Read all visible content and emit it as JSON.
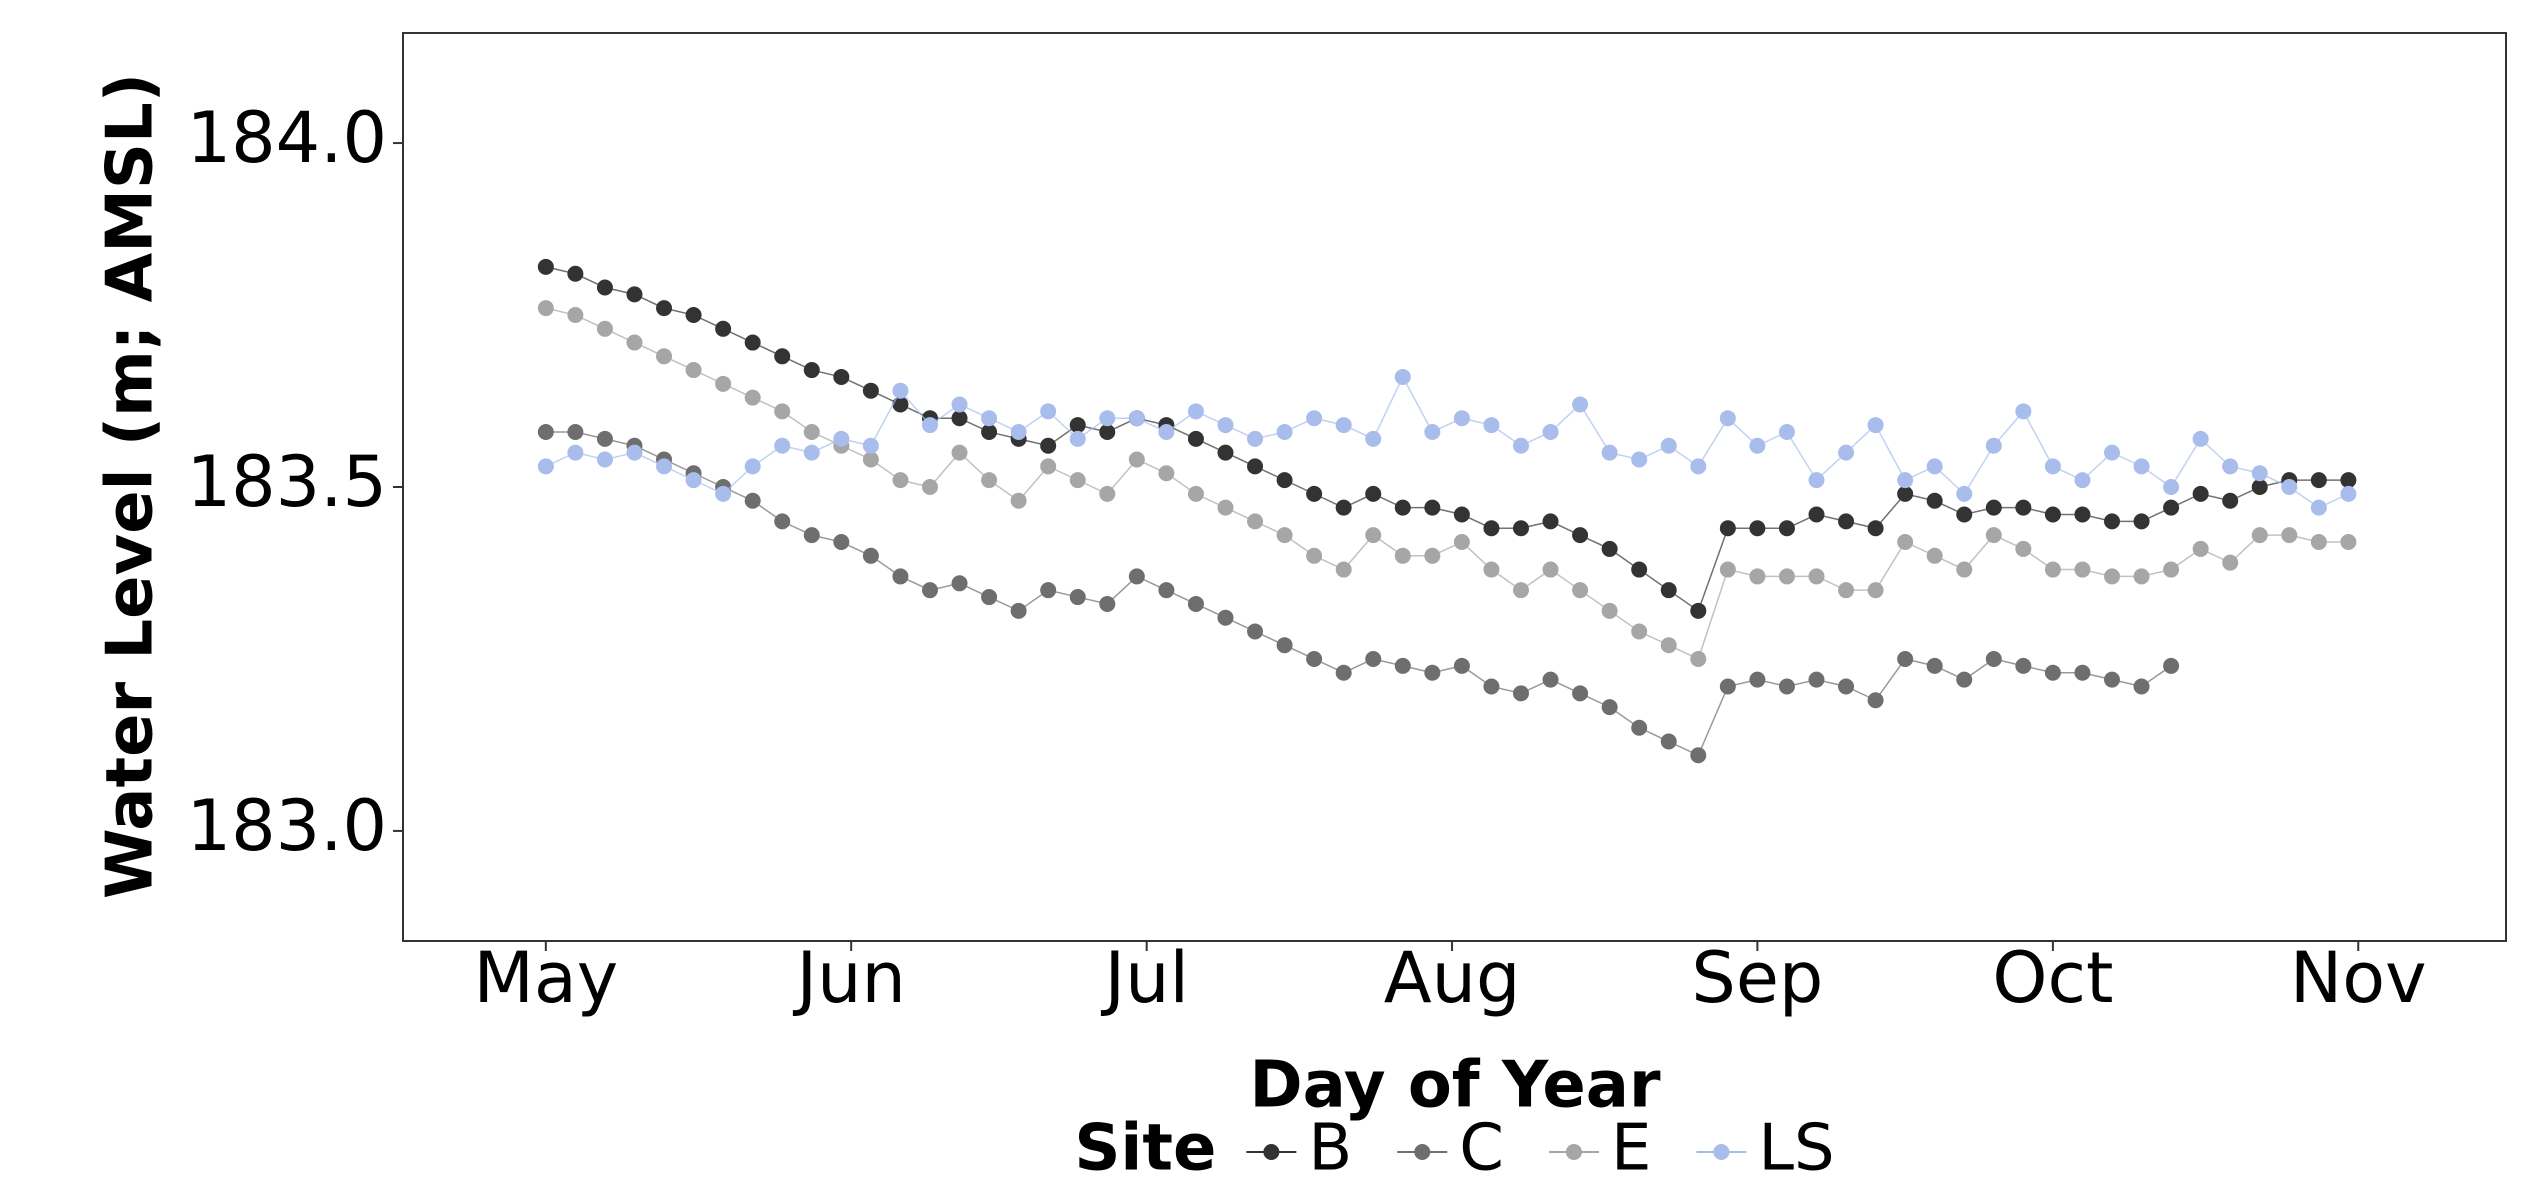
{
  "chart_data": {
    "type": "line",
    "x_label": "Day of Year",
    "y_label": "Water Level (m; AMSL)",
    "legend_title": "Site",
    "legend_position": "bottom",
    "markers": true,
    "x": [
      121,
      124,
      127,
      130,
      133,
      136,
      139,
      142,
      145,
      148,
      151,
      154,
      157,
      160,
      163,
      166,
      169,
      172,
      175,
      178,
      181,
      184,
      187,
      190,
      193,
      196,
      199,
      202,
      205,
      208,
      211,
      214,
      217,
      220,
      223,
      226,
      229,
      232,
      235,
      238,
      241,
      244,
      247,
      250,
      253,
      256,
      259,
      262,
      265,
      268,
      271,
      274,
      277,
      280,
      283,
      286,
      289,
      292,
      295,
      298,
      301,
      304
    ],
    "xlim": [
      106.5,
      320
    ],
    "xticks": [
      {
        "value": 121,
        "label": "May"
      },
      {
        "value": 152,
        "label": "Jun"
      },
      {
        "value": 182,
        "label": "Jul"
      },
      {
        "value": 213,
        "label": "Aug"
      },
      {
        "value": 244,
        "label": "Sep"
      },
      {
        "value": 274,
        "label": "Oct"
      },
      {
        "value": 305,
        "label": "Nov"
      }
    ],
    "ylim": [
      182.84,
      184.16
    ],
    "yticks": [
      {
        "value": 183,
        "label": "183.0"
      },
      183.5,
      {
        "value": 184,
        "label": "184.0"
      }
    ],
    "series": [
      {
        "name": "B",
        "color": "#333333",
        "values": [
          183.82,
          183.81,
          183.79,
          183.78,
          183.76,
          183.75,
          183.73,
          183.71,
          183.69,
          183.67,
          183.66,
          183.64,
          183.62,
          183.6,
          183.6,
          183.58,
          183.57,
          183.56,
          183.59,
          183.58,
          183.6,
          183.59,
          183.57,
          183.55,
          183.53,
          183.51,
          183.49,
          183.47,
          183.49,
          183.47,
          183.47,
          183.46,
          183.44,
          183.44,
          183.45,
          183.43,
          183.41,
          183.38,
          183.35,
          183.32,
          183.44,
          183.44,
          183.44,
          183.46,
          183.45,
          183.44,
          183.49,
          183.48,
          183.46,
          183.47,
          183.47,
          183.46,
          183.46,
          183.45,
          183.45,
          183.47,
          183.49,
          183.48,
          183.5,
          183.51,
          183.51,
          183.51
        ]
      },
      {
        "name": "C",
        "color": "#6e6e6e",
        "values": [
          183.58,
          183.58,
          183.57,
          183.56,
          183.54,
          183.52,
          183.5,
          183.48,
          183.45,
          183.43,
          183.42,
          183.4,
          183.37,
          183.35,
          183.36,
          183.34,
          183.32,
          183.35,
          183.34,
          183.33,
          183.37,
          183.35,
          183.33,
          183.31,
          183.29,
          183.27,
          183.25,
          183.23,
          183.25,
          183.24,
          183.23,
          183.24,
          183.21,
          183.2,
          183.22,
          183.2,
          183.18,
          183.15,
          183.13,
          183.11,
          183.21,
          183.22,
          183.21,
          183.22,
          183.21,
          183.19,
          183.25,
          183.24,
          183.22,
          183.25,
          183.24,
          183.23,
          183.23,
          183.22,
          183.21,
          183.24,
          null,
          null,
          null,
          null,
          null,
          null
        ]
      },
      {
        "name": "E",
        "color": "#a6a6a6",
        "values": [
          183.76,
          183.75,
          183.73,
          183.71,
          183.69,
          183.67,
          183.65,
          183.63,
          183.61,
          183.58,
          183.56,
          183.54,
          183.51,
          183.5,
          183.55,
          183.51,
          183.48,
          183.53,
          183.51,
          183.49,
          183.54,
          183.52,
          183.49,
          183.47,
          183.45,
          183.43,
          183.4,
          183.38,
          183.43,
          183.4,
          183.4,
          183.42,
          183.38,
          183.35,
          183.38,
          183.35,
          183.32,
          183.29,
          183.27,
          183.25,
          183.38,
          183.37,
          183.37,
          183.37,
          183.35,
          183.35,
          183.42,
          183.4,
          183.38,
          183.43,
          183.41,
          183.38,
          183.38,
          183.37,
          183.37,
          183.38,
          183.41,
          183.39,
          183.43,
          183.43,
          183.42,
          183.42
        ]
      },
      {
        "name": "LS",
        "color": "#a8bdec",
        "values": [
          183.53,
          183.55,
          183.54,
          183.55,
          183.53,
          183.51,
          183.49,
          183.53,
          183.56,
          183.55,
          183.57,
          183.56,
          183.64,
          183.59,
          183.62,
          183.6,
          183.58,
          183.61,
          183.57,
          183.6,
          183.6,
          183.58,
          183.61,
          183.59,
          183.57,
          183.58,
          183.6,
          183.59,
          183.57,
          183.66,
          183.58,
          183.6,
          183.59,
          183.56,
          183.58,
          183.62,
          183.55,
          183.54,
          183.56,
          183.53,
          183.6,
          183.56,
          183.58,
          183.51,
          183.55,
          183.59,
          183.51,
          183.53,
          183.49,
          183.56,
          183.61,
          183.53,
          183.51,
          183.55,
          183.53,
          183.5,
          183.57,
          183.53,
          183.52,
          183.5,
          183.47,
          183.49
        ]
      }
    ]
  }
}
